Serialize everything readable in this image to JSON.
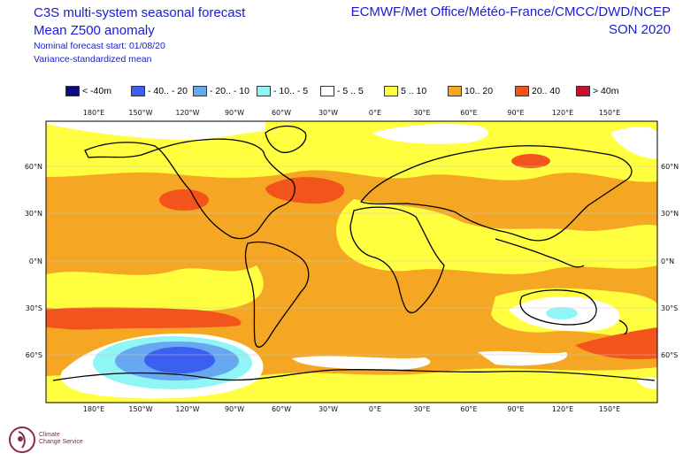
{
  "header": {
    "title_line1": "C3S multi-system seasonal forecast",
    "title_line2": "Mean Z500 anomaly",
    "subtitle_line1": "Nominal forecast start: 01/08/20",
    "subtitle_line2": "Variance-standardized mean",
    "centres": "ECMWF/Met Office/Météo-France/CMCC/DWD/NCEP",
    "season": "SON 2020"
  },
  "legend": [
    {
      "label": "< -40m",
      "color": "#0b0b80"
    },
    {
      "label": "- 40.. - 20",
      "color": "#3b5ff0"
    },
    {
      "label": "- 20.. - 10",
      "color": "#68a8f0"
    },
    {
      "label": "- 10.. - 5",
      "color": "#8ff5f5"
    },
    {
      "label": "- 5 .. 5",
      "color": "#ffffff"
    },
    {
      "label": "5 .. 10",
      "color": "#ffff40"
    },
    {
      "label": "10.. 20",
      "color": "#f5a623"
    },
    {
      "label": "20.. 40",
      "color": "#f2541b"
    },
    {
      "label": "> 40m",
      "color": "#c8102e"
    }
  ],
  "axes": {
    "longitude_labels": [
      "180°E",
      "150°W",
      "120°W",
      "90°W",
      "60°W",
      "30°W",
      "0°E",
      "30°E",
      "60°E",
      "90°E",
      "120°E",
      "150°E"
    ],
    "latitude_labels": [
      "60°N",
      "30°N",
      "0°N",
      "30°S",
      "60°S"
    ]
  },
  "map": {
    "projection": "equirectangular",
    "lon_range": [
      -195,
      195
    ],
    "lat_range": [
      -90,
      90
    ],
    "base_color": "#f5a623"
  },
  "logo": {
    "text_line1": "Climate",
    "text_line2": "Change Service",
    "icon": "copernicus-climate-logo"
  }
}
